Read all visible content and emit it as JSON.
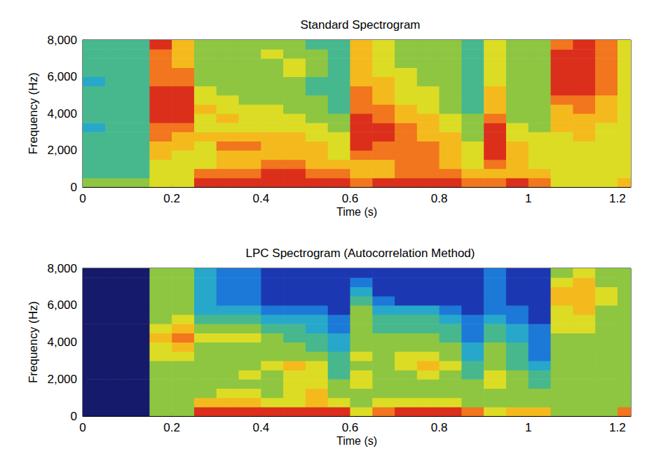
{
  "chart_data": [
    {
      "type": "heatmap",
      "title": "Standard Spectrogram",
      "x_label": "Time (s)",
      "y_label": "Frequency (Hz)",
      "xlim": [
        0,
        1.23
      ],
      "xticks": [
        0,
        0.2,
        0.4,
        0.6,
        0.8,
        1,
        1.2
      ],
      "ylim": [
        0,
        8000
      ],
      "yticks": [
        0,
        2000,
        4000,
        6000,
        8000
      ],
      "zlim": [
        0,
        10
      ],
      "x": [
        0.025,
        0.075,
        0.125,
        0.175,
        0.225,
        0.275,
        0.325,
        0.375,
        0.425,
        0.475,
        0.525,
        0.575,
        0.625,
        0.675,
        0.725,
        0.775,
        0.825,
        0.875,
        0.925,
        0.975,
        1.025,
        1.075,
        1.125,
        1.175,
        1.225
      ],
      "y": [
        250,
        750,
        1250,
        1750,
        2250,
        2750,
        3250,
        3750,
        4250,
        4750,
        5250,
        5750,
        6250,
        6750,
        7250,
        7750
      ],
      "values": [
        [
          5,
          4,
          4,
          4,
          4,
          4,
          3,
          4,
          4,
          4,
          4,
          3,
          4,
          4,
          4,
          4
        ],
        [
          5,
          4,
          4,
          4,
          4,
          4,
          4,
          4,
          4,
          4,
          4,
          4,
          4,
          4,
          4,
          4
        ],
        [
          5,
          4,
          4,
          4,
          4,
          4,
          4,
          4,
          4,
          4,
          4,
          4,
          4,
          4,
          4,
          4
        ],
        [
          6,
          6,
          6,
          7,
          7,
          8,
          8,
          9,
          9,
          9,
          9,
          8,
          8,
          8,
          8,
          9
        ],
        [
          6,
          6,
          6,
          6,
          7,
          7,
          8,
          9,
          9,
          9,
          9,
          8,
          8,
          7,
          7,
          7
        ],
        [
          9,
          8,
          6,
          6,
          6,
          7,
          6,
          6,
          7,
          6,
          6,
          5,
          5,
          5,
          5,
          5
        ],
        [
          9,
          8,
          7,
          7,
          8,
          7,
          6,
          7,
          6,
          6,
          5,
          5,
          5,
          5,
          5,
          5
        ],
        [
          9,
          8,
          7,
          7,
          8,
          7,
          6,
          6,
          6,
          5,
          5,
          5,
          5,
          5,
          5,
          5
        ],
        [
          9,
          9,
          8,
          7,
          7,
          7,
          6,
          6,
          6,
          5,
          5,
          5,
          5,
          5,
          6,
          5
        ],
        [
          9,
          9,
          8,
          7,
          7,
          7,
          6,
          6,
          5,
          5,
          5,
          5,
          6,
          6,
          5,
          5
        ],
        [
          9,
          8,
          7,
          7,
          7,
          6,
          6,
          5,
          5,
          5,
          4,
          4,
          5,
          5,
          5,
          4
        ],
        [
          9,
          8,
          7,
          6,
          6,
          6,
          5,
          5,
          4,
          4,
          4,
          4,
          4,
          4,
          4,
          4
        ],
        [
          8,
          7,
          7,
          8,
          9,
          9,
          9,
          9,
          8,
          8,
          8,
          7,
          7,
          7,
          7,
          7
        ],
        [
          9,
          7,
          7,
          8,
          8,
          9,
          9,
          8,
          8,
          7,
          7,
          7,
          6,
          6,
          6,
          6
        ],
        [
          9,
          8,
          8,
          8,
          8,
          8,
          8,
          7,
          7,
          6,
          6,
          6,
          6,
          5,
          5,
          5
        ],
        [
          9,
          8,
          8,
          8,
          8,
          7,
          7,
          7,
          6,
          6,
          6,
          5,
          5,
          5,
          5,
          5
        ],
        [
          9,
          8,
          7,
          7,
          7,
          7,
          6,
          6,
          5,
          5,
          5,
          5,
          5,
          5,
          5,
          5
        ],
        [
          8,
          7,
          6,
          6,
          6,
          5,
          5,
          5,
          4,
          4,
          4,
          4,
          4,
          4,
          4,
          4
        ],
        [
          8,
          7,
          8,
          9,
          9,
          9,
          9,
          8,
          7,
          7,
          7,
          6,
          6,
          6,
          6,
          6
        ],
        [
          9,
          7,
          7,
          7,
          7,
          6,
          6,
          5,
          5,
          5,
          5,
          5,
          5,
          5,
          5,
          5
        ],
        [
          8,
          7,
          6,
          6,
          6,
          6,
          5,
          5,
          5,
          5,
          5,
          5,
          5,
          5,
          5,
          5
        ],
        [
          6,
          6,
          6,
          6,
          6,
          6,
          7,
          7,
          7,
          8,
          9,
          9,
          9,
          9,
          9,
          8
        ],
        [
          6,
          6,
          6,
          6,
          6,
          7,
          7,
          7,
          8,
          8,
          9,
          9,
          9,
          9,
          9,
          9
        ],
        [
          6,
          6,
          6,
          6,
          6,
          6,
          6,
          7,
          7,
          7,
          8,
          8,
          8,
          8,
          8,
          8
        ],
        [
          7,
          6,
          6,
          6,
          6,
          6,
          6,
          6,
          6,
          6,
          6,
          6,
          6,
          6,
          6,
          6
        ]
      ]
    },
    {
      "type": "heatmap",
      "title": "LPC Spectrogram (Autocorrelation Method)",
      "x_label": "Time (s)",
      "y_label": "Frequency (Hz)",
      "xlim": [
        0,
        1.23
      ],
      "xticks": [
        0,
        0.2,
        0.4,
        0.6,
        0.8,
        1,
        1.2
      ],
      "ylim": [
        0,
        8000
      ],
      "yticks": [
        0,
        2000,
        4000,
        6000,
        8000
      ],
      "zlim": [
        0,
        10
      ],
      "x": [
        0.025,
        0.075,
        0.125,
        0.175,
        0.225,
        0.275,
        0.325,
        0.375,
        0.425,
        0.475,
        0.525,
        0.575,
        0.625,
        0.675,
        0.725,
        0.775,
        0.825,
        0.875,
        0.925,
        0.975,
        1.025,
        1.075,
        1.125,
        1.175,
        1.225
      ],
      "y": [
        250,
        750,
        1250,
        1750,
        2250,
        2750,
        3250,
        3750,
        4250,
        4750,
        5250,
        5750,
        6250,
        6750,
        7250,
        7750
      ],
      "values": [
        [
          0,
          0,
          0,
          0,
          0,
          0,
          0,
          0,
          0,
          0,
          0,
          0,
          0,
          0,
          0,
          0
        ],
        [
          0,
          0,
          0,
          0,
          0,
          0,
          0,
          0,
          0,
          0,
          0,
          0,
          0,
          0,
          0,
          0
        ],
        [
          0,
          0,
          0,
          0,
          0,
          0,
          0,
          0,
          0,
          0,
          0,
          0,
          0,
          0,
          0,
          0
        ],
        [
          5,
          5,
          5,
          5,
          5,
          5,
          6,
          6,
          7,
          6,
          5,
          5,
          5,
          5,
          5,
          5
        ],
        [
          5,
          5,
          5,
          5,
          5,
          5,
          6,
          7,
          8,
          7,
          6,
          5,
          5,
          5,
          5,
          5
        ],
        [
          9,
          7,
          5,
          5,
          5,
          5,
          5,
          5,
          6,
          5,
          4,
          3,
          3,
          3,
          3,
          3
        ],
        [
          9,
          7,
          6,
          5,
          5,
          5,
          5,
          5,
          6,
          5,
          4,
          3,
          2,
          2,
          2,
          2
        ],
        [
          9,
          7,
          6,
          5,
          6,
          5,
          5,
          5,
          6,
          5,
          4,
          3,
          2,
          2,
          2,
          2
        ],
        [
          9,
          6,
          5,
          5,
          5,
          6,
          5,
          5,
          5,
          4,
          3,
          2,
          1,
          1,
          1,
          1
        ],
        [
          9,
          6,
          6,
          6,
          6,
          7,
          5,
          5,
          4,
          4,
          3,
          2,
          1,
          1,
          1,
          1
        ],
        [
          9,
          7,
          7,
          6,
          6,
          6,
          5,
          4,
          4,
          3,
          3,
          2,
          1,
          1,
          1,
          1
        ],
        [
          9,
          6,
          5,
          5,
          4,
          4,
          4,
          3,
          3,
          2,
          2,
          1,
          1,
          1,
          1,
          1
        ],
        [
          6,
          5,
          5,
          6,
          6,
          5,
          6,
          5,
          5,
          5,
          5,
          5,
          4,
          3,
          2,
          1
        ],
        [
          8,
          6,
          5,
          5,
          5,
          5,
          5,
          5,
          5,
          4,
          4,
          3,
          2,
          1,
          1,
          1
        ],
        [
          9,
          6,
          5,
          5,
          5,
          6,
          6,
          5,
          5,
          4,
          4,
          3,
          1,
          1,
          1,
          1
        ],
        [
          9,
          6,
          5,
          5,
          6,
          7,
          6,
          5,
          5,
          4,
          4,
          3,
          1,
          1,
          1,
          1
        ],
        [
          9,
          6,
          5,
          5,
          5,
          6,
          5,
          5,
          4,
          4,
          3,
          2,
          1,
          1,
          1,
          1
        ],
        [
          8,
          5,
          5,
          5,
          4,
          4,
          3,
          3,
          2,
          2,
          2,
          1,
          1,
          1,
          1,
          1
        ],
        [
          6,
          5,
          5,
          6,
          6,
          5,
          5,
          5,
          4,
          4,
          3,
          2,
          2,
          2,
          2,
          2
        ],
        [
          7,
          5,
          5,
          5,
          5,
          4,
          4,
          4,
          3,
          3,
          2,
          2,
          1,
          1,
          1,
          1
        ],
        [
          7,
          5,
          5,
          4,
          4,
          3,
          2,
          2,
          2,
          2,
          1,
          1,
          1,
          1,
          1,
          1
        ],
        [
          5,
          5,
          5,
          5,
          5,
          5,
          5,
          5,
          5,
          6,
          6,
          6,
          7,
          7,
          6,
          5
        ],
        [
          5,
          5,
          5,
          5,
          5,
          5,
          5,
          5,
          5,
          6,
          6,
          7,
          7,
          7,
          7,
          6
        ],
        [
          5,
          5,
          5,
          5,
          5,
          5,
          5,
          5,
          5,
          5,
          5,
          5,
          6,
          6,
          5,
          5
        ],
        [
          8,
          5,
          5,
          5,
          5,
          5,
          5,
          5,
          5,
          5,
          5,
          5,
          5,
          5,
          5,
          5
        ]
      ]
    }
  ]
}
